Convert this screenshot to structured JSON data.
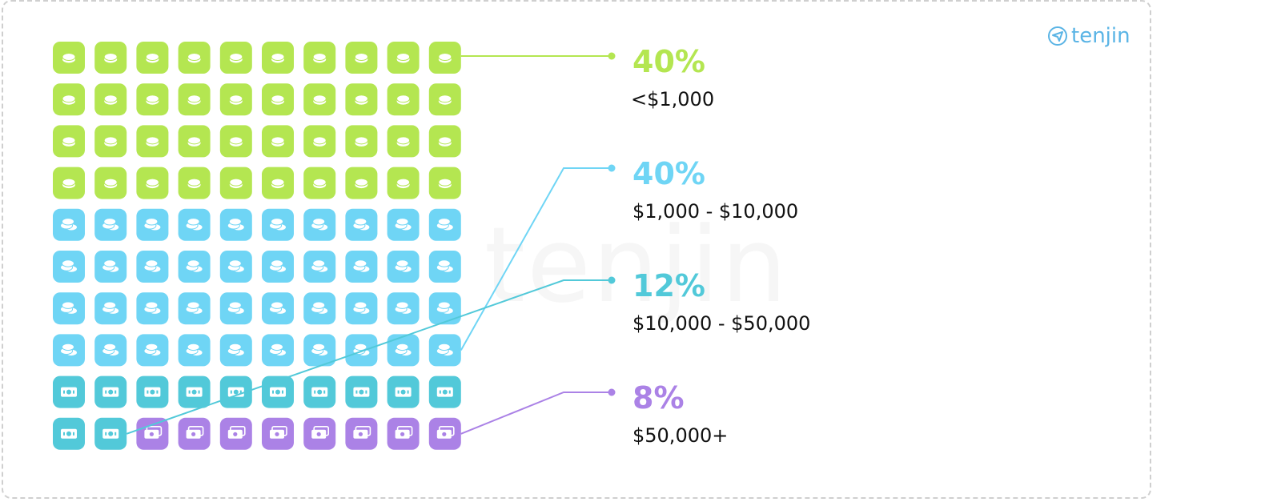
{
  "logo": {
    "text": "tenjin",
    "icon": "tenjin-bird-icon",
    "color": "#5ab4e5"
  },
  "watermark": "tenjin",
  "chart_data": {
    "type": "waffle",
    "grid": {
      "rows": 10,
      "cols": 10
    },
    "series": [
      {
        "name": "<$1,000",
        "percent": 40,
        "label_value": "40%",
        "color": "#b4e651",
        "icon": "single-coin-icon"
      },
      {
        "name": "$1,000 - $10,000",
        "percent": 40,
        "label_value": "40%",
        "color": "#6fd5f5",
        "icon": "coin-stack-icon"
      },
      {
        "name": "$10,000 - $50,000",
        "percent": 12,
        "label_value": "12%",
        "color": "#52c9d9",
        "icon": "banknote-icon"
      },
      {
        "name": "$50,000+",
        "percent": 8,
        "label_value": "8%",
        "color": "#ab82e6",
        "icon": "banknote-stack-icon"
      }
    ]
  }
}
